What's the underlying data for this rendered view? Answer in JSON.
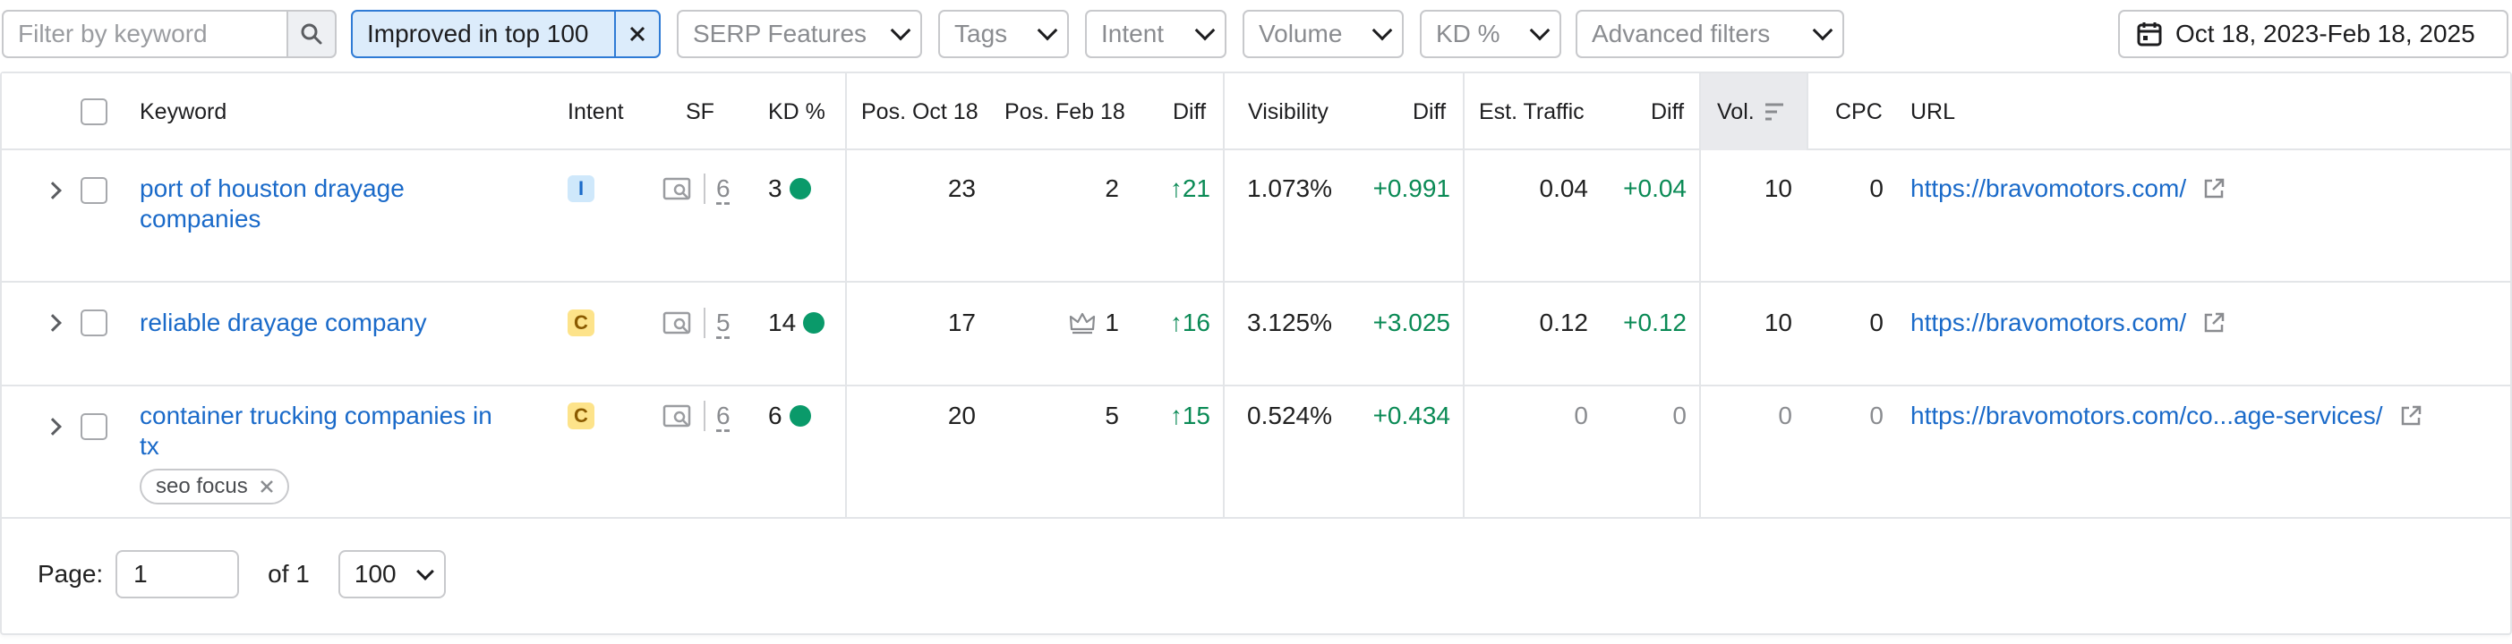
{
  "filters": {
    "search_placeholder": "Filter by keyword",
    "active_chip": "Improved in top 100",
    "serp_features": "SERP Features",
    "tags": "Tags",
    "intent": "Intent",
    "volume": "Volume",
    "kd": "KD %",
    "advanced": "Advanced filters",
    "date_range": "Oct 18, 2023-Feb 18, 2025"
  },
  "table": {
    "headers": {
      "keyword": "Keyword",
      "intent": "Intent",
      "sf": "SF",
      "kd": "KD %",
      "pos_oct": "Pos. Oct 18",
      "pos_feb": "Pos. Feb 18",
      "diff": "Diff",
      "visibility": "Visibility",
      "vis_diff": "Diff",
      "traffic": "Est. Traffic",
      "traffic_diff": "Diff",
      "vol": "Vol.",
      "cpc": "CPC",
      "url": "URL"
    },
    "rows": [
      {
        "keyword_line1": "port of houston drayage",
        "keyword_line2": "companies",
        "intent": "I",
        "sf": "6",
        "kd": "3",
        "pos_oct": "23",
        "pos_feb": "2",
        "diff": "21",
        "visibility": "1.073%",
        "vis_diff": "+0.991",
        "traffic": "0.04",
        "traffic_diff": "+0.04",
        "vol": "10",
        "cpc": "0",
        "url": "https://bravomotors.com/"
      },
      {
        "keyword_line1": "reliable drayage company",
        "intent": "C",
        "sf": "5",
        "kd": "14",
        "pos_oct": "17",
        "pos_feb": "1",
        "diff": "16",
        "visibility": "3.125%",
        "vis_diff": "+3.025",
        "traffic": "0.12",
        "traffic_diff": "+0.12",
        "vol": "10",
        "cpc": "0",
        "url": "https://bravomotors.com/"
      },
      {
        "keyword_line1": "container trucking companies in",
        "keyword_line2": "tx",
        "tag": "seo focus",
        "intent": "C",
        "sf": "6",
        "kd": "6",
        "pos_oct": "20",
        "pos_feb": "5",
        "diff": "15",
        "visibility": "0.524%",
        "vis_diff": "+0.434",
        "traffic": "0",
        "traffic_diff": "0",
        "vol": "0",
        "cpc": "0",
        "url": "https://bravomotors.com/co...age-services/"
      }
    ]
  },
  "pagination": {
    "label": "Page:",
    "current": "1",
    "of_label": "of 1",
    "per_page": "100"
  },
  "colors": {
    "link": "#1a6ac9",
    "positive": "#0a8a55",
    "kd_dot": "#0a9a6a",
    "intent_informational": "#cfe8fb",
    "intent_commercial": "#fde38a",
    "active_chip_bg": "#dcecfb",
    "active_chip_border": "#2f7bd5"
  }
}
